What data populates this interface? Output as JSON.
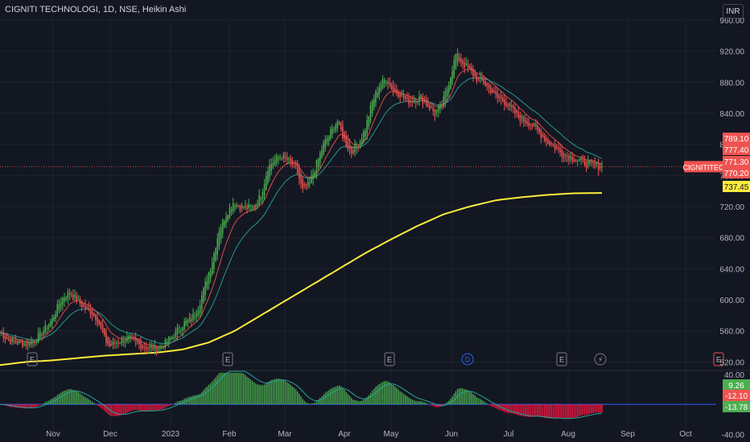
{
  "header": {
    "symbol_title": "CIGNITI TECHNOLOGI, 1D, NSE, Heikin Ashi",
    "currency": "INR"
  },
  "colors": {
    "background": "#131722",
    "grid": "#1e222d",
    "up": "#26a69a",
    "up_bright": "#4caf50",
    "down": "#ef5350",
    "ma200": "#ffeb3b",
    "ma_fast": "#ef5350",
    "ma_slow": "#26a69a",
    "oscillator_up": "#4caf50",
    "oscillator_down": "#ff1744",
    "zero_line": "#2962ff"
  },
  "chart_data": [
    {
      "type": "candlestick",
      "title": "CIGNITI TECHNOLOGI, 1D, NSE, Heikin Ashi",
      "x_labels": [
        "Nov",
        "Dec",
        "2023",
        "Feb",
        "Mar",
        "Apr",
        "May",
        "Jun",
        "Jul",
        "Aug",
        "Sep",
        "Oct"
      ],
      "y_ticks": [
        520,
        560,
        600,
        640,
        680,
        720,
        760,
        800,
        840,
        880,
        920,
        960
      ],
      "y_tick_labels": [
        "520.00",
        "560.00",
        "600.00",
        "640.00",
        "680.00",
        "720.00",
        "760.00",
        "800.00",
        "840.00",
        "880.00",
        "920.00",
        "960.00"
      ],
      "ylim": [
        510,
        963
      ],
      "events": [
        "E",
        "E",
        "E",
        "D",
        "E",
        "⚡",
        "E"
      ],
      "price_labels": [
        {
          "text": "789.10",
          "value": 789.1,
          "color": "#ef5350"
        },
        {
          "text": "777.40",
          "value": 777.4,
          "color": "#ef5350"
        },
        {
          "text": "771.30",
          "value": 771.3,
          "color": "#ef5350"
        },
        {
          "text": "770.20",
          "value": 770.2,
          "color": "#ef5350"
        },
        {
          "text": "737.45",
          "value": 737.45,
          "color": "#ffeb3b"
        }
      ],
      "symbol_tag": "CIGNITITEC",
      "last_price": 771.3,
      "series": [
        {
          "name": "price",
          "points": [
            [
              0,
              558
            ],
            [
              5,
              548
            ],
            [
              10,
              545
            ],
            [
              15,
              543
            ],
            [
              20,
              548
            ],
            [
              25,
              560
            ],
            [
              30,
              575
            ],
            [
              35,
              600
            ],
            [
              40,
              610
            ],
            [
              44,
              600
            ],
            [
              48,
              590
            ],
            [
              52,
              585
            ],
            [
              56,
              575
            ],
            [
              60,
              550
            ],
            [
              63,
              540
            ],
            [
              66,
              545
            ],
            [
              70,
              548
            ],
            [
              74,
              550
            ],
            [
              78,
              545
            ],
            [
              82,
              540
            ],
            [
              86,
              538
            ],
            [
              90,
              537
            ],
            [
              94,
              542
            ],
            [
              98,
              550
            ],
            [
              102,
              560
            ],
            [
              106,
              570
            ],
            [
              110,
              575
            ],
            [
              114,
              590
            ],
            [
              118,
              620
            ],
            [
              122,
              650
            ],
            [
              126,
              690
            ],
            [
              130,
              710
            ],
            [
              134,
              725
            ],
            [
              138,
              720
            ],
            [
              142,
              718
            ],
            [
              146,
              720
            ],
            [
              150,
              735
            ],
            [
              154,
              770
            ],
            [
              158,
              780
            ],
            [
              162,
              785
            ],
            [
              166,
              778
            ],
            [
              170,
              770
            ],
            [
              174,
              740
            ],
            [
              178,
              750
            ],
            [
              182,
              775
            ],
            [
              186,
              800
            ],
            [
              190,
              815
            ],
            [
              194,
              830
            ],
            [
              198,
              805
            ],
            [
              202,
              790
            ],
            [
              206,
              800
            ],
            [
              210,
              820
            ],
            [
              214,
              855
            ],
            [
              218,
              875
            ],
            [
              222,
              885
            ],
            [
              226,
              870
            ],
            [
              230,
              865
            ],
            [
              234,
              855
            ],
            [
              238,
              858
            ],
            [
              242,
              860
            ],
            [
              246,
              850
            ],
            [
              250,
              840
            ],
            [
              254,
              850
            ],
            [
              258,
              880
            ],
            [
              262,
              915
            ],
            [
              266,
              905
            ],
            [
              270,
              895
            ],
            [
              274,
              885
            ],
            [
              278,
              880
            ],
            [
              282,
              870
            ],
            [
              286,
              860
            ],
            [
              290,
              855
            ],
            [
              294,
              845
            ],
            [
              298,
              835
            ],
            [
              302,
              830
            ],
            [
              306,
              825
            ],
            [
              310,
              815
            ],
            [
              314,
              805
            ],
            [
              318,
              798
            ],
            [
              322,
              790
            ],
            [
              326,
              785
            ],
            [
              330,
              782
            ],
            [
              334,
              778
            ],
            [
              338,
              775
            ],
            [
              342,
              772
            ],
            [
              346,
              771.3
            ]
          ]
        },
        {
          "name": "ma200",
          "points": [
            [
              0,
              516
            ],
            [
              15,
              520
            ],
            [
              30,
              522
            ],
            [
              45,
              525
            ],
            [
              60,
              528
            ],
            [
              75,
              530
            ],
            [
              90,
              532
            ],
            [
              105,
              536
            ],
            [
              120,
              545
            ],
            [
              135,
              560
            ],
            [
              150,
              580
            ],
            [
              165,
              600
            ],
            [
              180,
              620
            ],
            [
              195,
              640
            ],
            [
              210,
              660
            ],
            [
              225,
              678
            ],
            [
              240,
              695
            ],
            [
              255,
              710
            ],
            [
              270,
              720
            ],
            [
              285,
              728
            ],
            [
              300,
              732
            ],
            [
              315,
              735
            ],
            [
              330,
              737
            ],
            [
              346,
              737.45
            ]
          ]
        }
      ]
    },
    {
      "type": "bar",
      "title": "",
      "y_ticks": [
        40,
        0,
        -40
      ],
      "y_tick_labels": [
        "40.00",
        "0.00",
        "-40.00"
      ],
      "ylim": [
        -48,
        44
      ],
      "value_labels": [
        {
          "text": "9.26",
          "value": 9.26,
          "color": "#4caf50"
        },
        {
          "text": "-12.10",
          "value": -12.1,
          "color": "#ef5350"
        },
        {
          "text": "-13.78",
          "value": -13.78,
          "color": "#4caf50"
        }
      ]
    }
  ]
}
